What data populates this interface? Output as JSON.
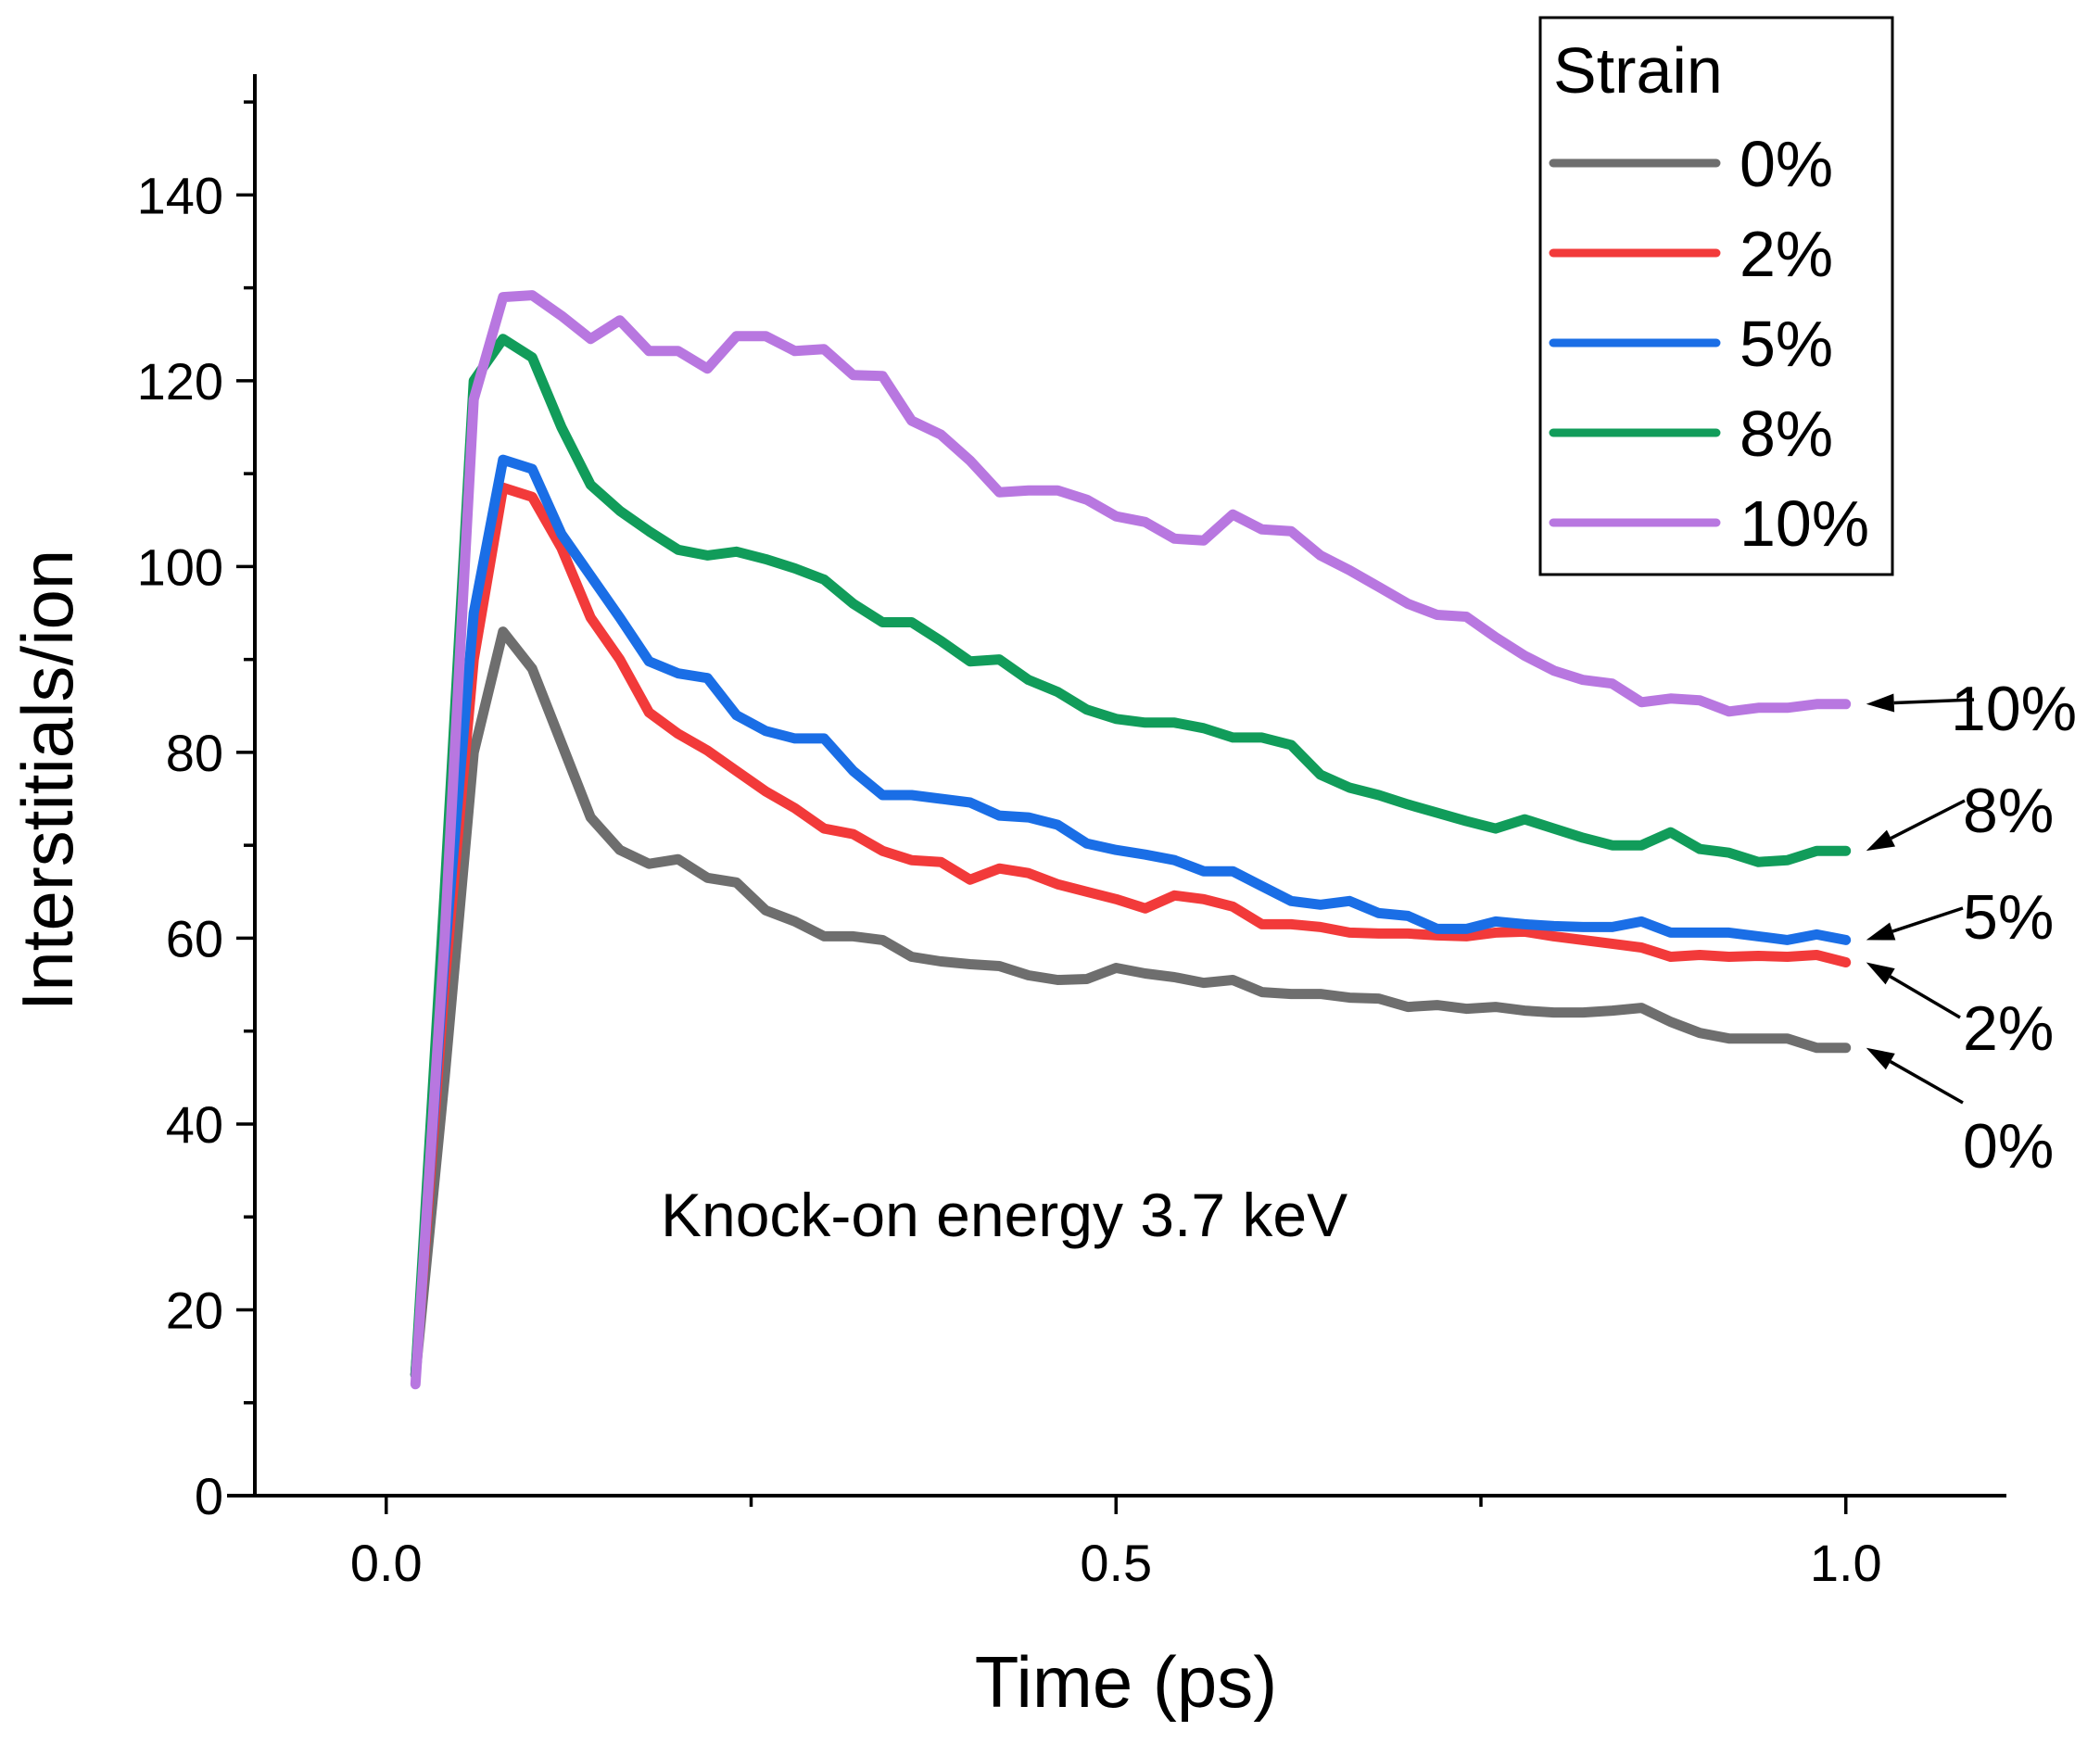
{
  "chart_data": {
    "type": "line",
    "title": "",
    "xlabel": "Time (ps)",
    "ylabel": "Interstitials/ion",
    "xlim": [
      -0.09,
      1.11
    ],
    "ylim": [
      0,
      153
    ],
    "x_ticks": [
      0.0,
      0.5,
      1.0
    ],
    "x_tick_labels": [
      "0.0",
      "0.5",
      "1.0"
    ],
    "y_ticks": [
      0,
      20,
      40,
      60,
      80,
      100,
      120,
      140
    ],
    "y_tick_labels": [
      "0",
      "20",
      "40",
      "60",
      "80",
      "100",
      "120",
      "140"
    ],
    "x_minor_step": 0.25,
    "y_minor_step": 10,
    "grid": false,
    "annotation": "Knock-on energy 3.7 keV",
    "legend": {
      "title": "Strain",
      "position": "top-right"
    },
    "x": [
      0.02,
      0.04,
      0.06,
      0.08,
      0.1,
      0.12,
      0.14,
      0.16,
      0.18,
      0.2,
      0.22,
      0.24,
      0.26,
      0.28,
      0.3,
      0.32,
      0.34,
      0.36,
      0.38,
      0.4,
      0.42,
      0.44,
      0.46,
      0.48,
      0.5,
      0.52,
      0.54,
      0.56,
      0.58,
      0.6,
      0.62,
      0.64,
      0.66,
      0.68,
      0.7,
      0.72,
      0.74,
      0.76,
      0.78,
      0.8,
      0.82,
      0.84,
      0.86,
      0.88,
      0.9,
      0.92,
      0.94,
      0.96,
      0.98,
      1.0
    ],
    "series": [
      {
        "name": "0%",
        "color": "#6e6e6e",
        "end_label": "0%",
        "values": [
          13,
          45,
          80,
          93,
          89,
          81,
          73,
          69.5,
          68,
          68.5,
          66.5,
          66,
          63,
          61.8,
          60.2,
          60.2,
          59.8,
          58,
          57.5,
          57.2,
          57,
          56,
          55.5,
          55.6,
          56.8,
          56.2,
          55.8,
          55.2,
          55.5,
          54.2,
          54,
          54,
          53.6,
          53.5,
          52.6,
          52.8,
          52.4,
          52.6,
          52.2,
          52,
          52,
          52.2,
          52.5,
          51,
          49.8,
          49.2,
          49.2,
          49.2,
          48.2,
          48.2
        ]
      },
      {
        "name": "2%",
        "color": "#f23a3a",
        "end_label": "2%",
        "values": [
          13,
          55,
          90,
          108.5,
          107.5,
          102,
          94.5,
          90,
          84.3,
          82,
          80.2,
          78,
          75.8,
          74,
          71.8,
          71.2,
          69.4,
          68.4,
          68.2,
          66.3,
          67.5,
          67,
          65.8,
          65,
          64.2,
          63.2,
          64.6,
          64.2,
          63.4,
          61.5,
          61.5,
          61.2,
          60.6,
          60.5,
          60.5,
          60.3,
          60.2,
          60.6,
          60.7,
          60.2,
          59.8,
          59.4,
          59,
          58,
          58.2,
          58,
          58.1,
          58,
          58.2,
          57.4
        ]
      },
      {
        "name": "5%",
        "color": "#1a6ee6",
        "end_label": "5%",
        "values": [
          13,
          58,
          95,
          111.5,
          110.5,
          103.5,
          99,
          94.5,
          89.8,
          88.5,
          88,
          84,
          82.3,
          81.5,
          81.5,
          78,
          75.4,
          75.4,
          75,
          74.6,
          73.2,
          73,
          72.2,
          70.2,
          69.5,
          69,
          68.4,
          67.2,
          67.2,
          65.6,
          64,
          63.6,
          64,
          62.7,
          62.4,
          61,
          61,
          61.8,
          61.5,
          61.3,
          61.2,
          61.2,
          61.8,
          60.6,
          60.6,
          60.6,
          60.2,
          59.8,
          60.4,
          59.8
        ]
      },
      {
        "name": "8%",
        "color": "#119c5a",
        "end_label": "8%",
        "values": [
          13,
          65,
          120,
          124.5,
          122.5,
          115,
          108.8,
          106,
          103.8,
          101.8,
          101.2,
          101.6,
          100.8,
          99.8,
          98.6,
          96,
          94,
          94,
          92,
          89.8,
          90,
          87.8,
          86.5,
          84.6,
          83.6,
          83.2,
          83.2,
          82.6,
          81.6,
          81.6,
          80.8,
          77.6,
          76.2,
          75.4,
          74.4,
          73.5,
          72.6,
          71.8,
          72.8,
          71.8,
          70.8,
          70,
          70,
          71.4,
          69.6,
          69.2,
          68.2,
          68.4,
          69.4,
          69.4
        ]
      },
      {
        "name": "10%",
        "color": "#b877e0",
        "end_label": "10%",
        "values": [
          12,
          60,
          118,
          129,
          129.2,
          127,
          124.5,
          126.5,
          123.2,
          123.2,
          121.3,
          124.8,
          124.8,
          123.2,
          123.4,
          120.6,
          120.5,
          115.7,
          114.2,
          111.4,
          108,
          108.2,
          108.2,
          107.2,
          105.4,
          104.8,
          103,
          102.8,
          105.6,
          104,
          103.8,
          101.2,
          99.6,
          97.8,
          96,
          94.8,
          94.6,
          92.4,
          90.4,
          88.8,
          87.8,
          87.4,
          85.4,
          85.8,
          85.6,
          84.4,
          84.8,
          84.8,
          85.2,
          85.2
        ]
      }
    ]
  }
}
